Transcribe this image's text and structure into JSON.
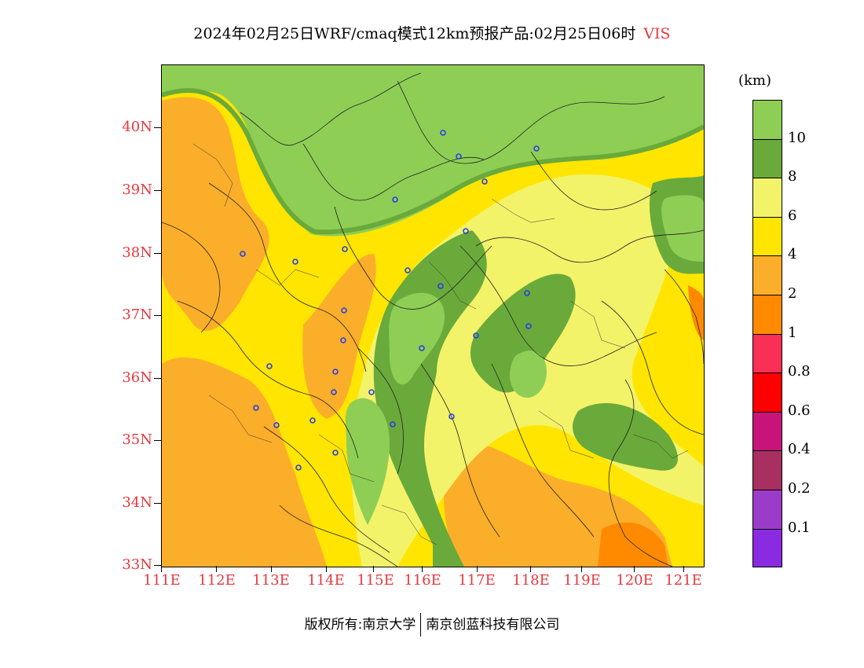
{
  "title": {
    "main": "2024年02月25日WRF/cmaq模式12km预报产品:02月25日06时",
    "variable": "VIS"
  },
  "axes": {
    "lat_labels": [
      "40N",
      "39N",
      "38N",
      "37N",
      "36N",
      "35N",
      "34N",
      "33N"
    ],
    "lon_labels": [
      "111E",
      "112E",
      "113E",
      "114E",
      "115E",
      "116E",
      "117E",
      "118E",
      "119E",
      "120E",
      "121E"
    ]
  },
  "legend": {
    "unit": "(km)",
    "bins": [
      {
        "label": "10",
        "color": "#8fce55"
      },
      {
        "label": "8",
        "color": "#6aaa3a"
      },
      {
        "label": "6",
        "color": "#f3f36a"
      },
      {
        "label": "4",
        "color": "#ffe500"
      },
      {
        "label": "2",
        "color": "#fbae2a"
      },
      {
        "label": "1",
        "color": "#ff8a00"
      },
      {
        "label": "0.8",
        "color": "#fa2f55"
      },
      {
        "label": "0.6",
        "color": "#ff0000"
      },
      {
        "label": "0.4",
        "color": "#c8147a"
      },
      {
        "label": "0.2",
        "color": "#a83060"
      },
      {
        "label": "0.1",
        "color": "#9b3cc8"
      },
      {
        "label": "",
        "color": "#8a2be2"
      }
    ]
  },
  "colors": {
    "vis_above_10": "#8fce55",
    "vis_8_10": "#6aaa3a",
    "vis_6_8": "#f3f36a",
    "vis_4_6": "#ffe500",
    "vis_2_4": "#fbae2a",
    "vis_1_2": "#ff8a00",
    "station_marker": "#2a3ee6",
    "axis_label": "#e8383d"
  },
  "footer": {
    "left": "版权所有:南京大学",
    "right": "南京创蓝科技有限公司"
  }
}
